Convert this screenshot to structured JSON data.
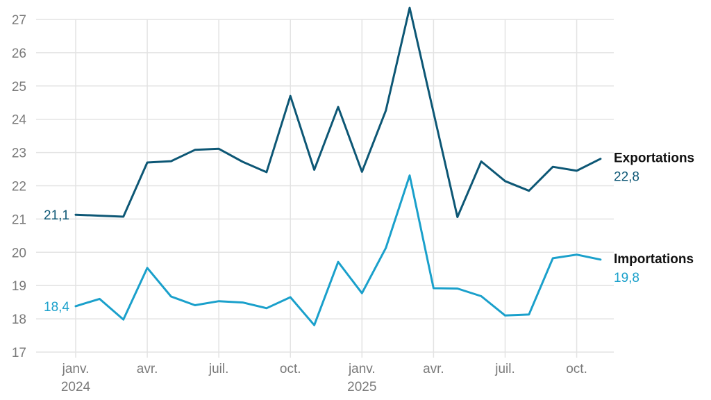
{
  "chart_data": {
    "type": "line",
    "x": [
      "2024-01",
      "2024-02",
      "2024-03",
      "2024-04",
      "2024-05",
      "2024-06",
      "2024-07",
      "2024-08",
      "2024-09",
      "2024-10",
      "2024-11",
      "2024-12",
      "2025-01",
      "2025-02",
      "2025-03",
      "2025-04",
      "2025-05",
      "2025-06",
      "2025-07",
      "2025-08",
      "2025-09",
      "2025-10",
      "2025-11"
    ],
    "x_tick_labels": [
      {
        "x": "2024-01",
        "line1": "janv.",
        "line2": "2024"
      },
      {
        "x": "2024-04",
        "line1": "avr.",
        "line2": ""
      },
      {
        "x": "2024-07",
        "line1": "juil.",
        "line2": ""
      },
      {
        "x": "2024-10",
        "line1": "oct.",
        "line2": ""
      },
      {
        "x": "2025-01",
        "line1": "janv.",
        "line2": "2025"
      },
      {
        "x": "2025-04",
        "line1": "avr.",
        "line2": ""
      },
      {
        "x": "2025-07",
        "line1": "juil.",
        "line2": ""
      },
      {
        "x": "2025-10",
        "line1": "oct.",
        "line2": ""
      }
    ],
    "ylim": [
      17,
      27
    ],
    "y_ticks": [
      "17",
      "18",
      "19",
      "20",
      "21",
      "22",
      "23",
      "24",
      "25",
      "26",
      "27"
    ],
    "grid": true,
    "series": [
      {
        "name": "Exportations",
        "color": "#0d5775",
        "start_label": "21,1",
        "end_label": "22,8",
        "values": [
          21.13,
          21.1,
          21.07,
          22.7,
          22.74,
          23.08,
          23.11,
          22.72,
          22.41,
          24.7,
          22.48,
          24.37,
          22.42,
          24.26,
          27.35,
          24.2,
          21.06,
          22.73,
          22.14,
          21.85,
          22.57,
          22.45,
          22.81
        ]
      },
      {
        "name": "Importations",
        "color": "#1aa0cb",
        "start_label": "18,4",
        "end_label": "19,8",
        "values": [
          18.38,
          18.6,
          17.98,
          19.53,
          18.67,
          18.41,
          18.53,
          18.49,
          18.32,
          18.65,
          17.81,
          19.71,
          18.77,
          20.13,
          22.31,
          18.92,
          18.91,
          18.68,
          18.1,
          18.13,
          19.82,
          19.93,
          19.78
        ]
      }
    ]
  }
}
